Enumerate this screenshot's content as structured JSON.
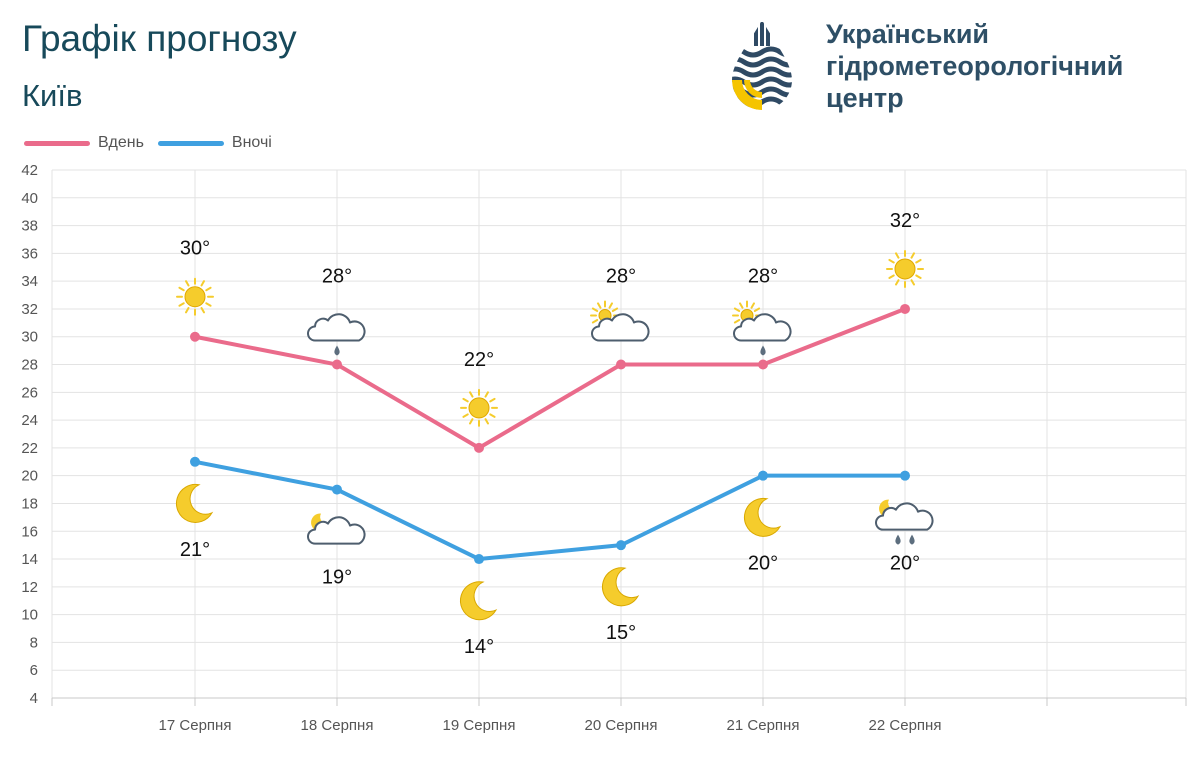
{
  "header": {
    "title": "Графік прогнозу",
    "city": "Київ"
  },
  "logo": {
    "lines": [
      "Український",
      "гідрометеорологічний",
      "центр"
    ],
    "text_color": "#2e4f66"
  },
  "colors": {
    "day": "#ea6b8b",
    "night": "#3fa0e0",
    "grid": "#e3e3e3",
    "sun": "#f5cc2c",
    "cloud_stroke": "#4e5e6e",
    "drop": "#5d6e7e"
  },
  "chart_data": {
    "type": "line",
    "categories": [
      "17 Серпня",
      "18 Серпня",
      "19 Серпня",
      "20 Серпня",
      "21 Серпня",
      "22 Серпня"
    ],
    "ylim": [
      4,
      42
    ],
    "yticks": [
      4,
      6,
      8,
      10,
      12,
      14,
      16,
      18,
      20,
      22,
      24,
      26,
      28,
      30,
      32,
      34,
      36,
      38,
      40,
      42
    ],
    "grid": true,
    "legend_position": "top-left",
    "series": [
      {
        "name": "Вдень",
        "values": [
          30,
          28,
          22,
          28,
          28,
          32
        ],
        "labels": [
          "30°",
          "28°",
          "22°",
          "28°",
          "28°",
          "32°"
        ],
        "icons": [
          "sun-icon",
          "cloud-rain-icon",
          "sun-icon",
          "sun-cloud-icon",
          "sun-cloud-rain-icon",
          "sun-icon"
        ]
      },
      {
        "name": "Вночі",
        "values": [
          21,
          19,
          14,
          15,
          20,
          20
        ],
        "labels": [
          "21°",
          "19°",
          "14°",
          "15°",
          "20°",
          "20°"
        ],
        "icons": [
          "moon-icon",
          "moon-cloud-icon",
          "moon-icon",
          "moon-icon",
          "moon-icon",
          "moon-cloud-rain-icon"
        ]
      }
    ]
  }
}
